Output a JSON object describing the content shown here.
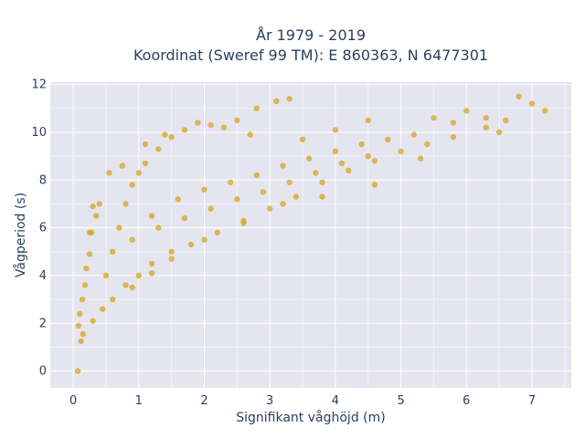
{
  "chart_data": {
    "type": "scatter",
    "title_lines": [
      "År 1979 - 2019",
      "Koordinat (Sweref 99 TM): E 860363, N 6477301"
    ],
    "xlabel": "Signifikant våghöjd (m)",
    "ylabel": "Vågperiod (s)",
    "xlim": [
      -0.35,
      7.6
    ],
    "ylim": [
      -0.7,
      12.1
    ],
    "xticks": [
      0,
      1,
      2,
      3,
      4,
      5,
      6,
      7
    ],
    "yticks": [
      0,
      2,
      4,
      6,
      8,
      10,
      12
    ],
    "grid": true,
    "point_color": "#d4a520",
    "plot_background": "#e5e5f0",
    "series": [
      {
        "points": [
          [
            0.07,
            0.0
          ],
          [
            0.12,
            1.25
          ],
          [
            0.15,
            1.55
          ],
          [
            0.08,
            1.9
          ],
          [
            0.1,
            2.4
          ],
          [
            0.14,
            3.0
          ],
          [
            0.18,
            3.6
          ],
          [
            0.2,
            4.3
          ],
          [
            0.25,
            4.9
          ],
          [
            0.28,
            5.8
          ],
          [
            0.35,
            6.5
          ],
          [
            0.4,
            7.0
          ],
          [
            0.3,
            2.1
          ],
          [
            0.45,
            2.6
          ],
          [
            0.6,
            3.0
          ],
          [
            0.8,
            3.6
          ],
          [
            1.0,
            4.0
          ],
          [
            1.2,
            4.5
          ],
          [
            1.5,
            5.0
          ],
          [
            1.8,
            5.3
          ],
          [
            2.2,
            5.8
          ],
          [
            2.6,
            6.3
          ],
          [
            3.0,
            6.8
          ],
          [
            3.4,
            7.3
          ],
          [
            3.8,
            7.9
          ],
          [
            4.2,
            8.4
          ],
          [
            4.6,
            8.8
          ],
          [
            5.0,
            9.2
          ],
          [
            5.4,
            9.5
          ],
          [
            5.8,
            9.8
          ],
          [
            0.5,
            4.0
          ],
          [
            0.6,
            5.0
          ],
          [
            0.7,
            6.0
          ],
          [
            0.8,
            7.0
          ],
          [
            0.9,
            7.8
          ],
          [
            1.0,
            8.3
          ],
          [
            1.1,
            8.7
          ],
          [
            1.3,
            9.3
          ],
          [
            1.5,
            9.8
          ],
          [
            1.7,
            10.1
          ],
          [
            1.9,
            10.4
          ],
          [
            2.1,
            10.3
          ],
          [
            2.5,
            10.5
          ],
          [
            1.2,
            6.5
          ],
          [
            1.6,
            7.2
          ],
          [
            2.0,
            7.6
          ],
          [
            2.4,
            7.9
          ],
          [
            2.8,
            8.2
          ],
          [
            3.2,
            8.6
          ],
          [
            3.6,
            8.9
          ],
          [
            4.0,
            9.2
          ],
          [
            4.4,
            9.5
          ],
          [
            4.8,
            9.7
          ],
          [
            5.2,
            9.9
          ],
          [
            0.9,
            5.5
          ],
          [
            1.3,
            6.0
          ],
          [
            1.7,
            6.4
          ],
          [
            2.1,
            6.8
          ],
          [
            2.5,
            7.2
          ],
          [
            2.9,
            7.5
          ],
          [
            3.3,
            7.9
          ],
          [
            3.7,
            8.3
          ],
          [
            4.1,
            8.7
          ],
          [
            4.5,
            9.0
          ],
          [
            2.8,
            11.0
          ],
          [
            3.1,
            11.3
          ],
          [
            3.3,
            11.4
          ],
          [
            4.5,
            10.5
          ],
          [
            5.5,
            10.6
          ],
          [
            5.8,
            10.4
          ],
          [
            6.0,
            10.9
          ],
          [
            6.3,
            10.6
          ],
          [
            6.6,
            10.5
          ],
          [
            6.8,
            11.5
          ],
          [
            7.0,
            11.2
          ],
          [
            7.2,
            10.9
          ],
          [
            6.3,
            10.2
          ],
          [
            6.5,
            10.0
          ],
          [
            5.3,
            8.9
          ],
          [
            4.6,
            7.8
          ],
          [
            3.8,
            7.3
          ],
          [
            3.2,
            7.0
          ],
          [
            2.6,
            6.2
          ],
          [
            2.0,
            5.5
          ],
          [
            1.5,
            4.7
          ],
          [
            1.2,
            4.1
          ],
          [
            0.9,
            3.5
          ],
          [
            0.25,
            5.8
          ],
          [
            0.3,
            6.9
          ],
          [
            0.55,
            8.3
          ],
          [
            0.75,
            8.6
          ],
          [
            1.1,
            9.5
          ],
          [
            1.4,
            9.9
          ],
          [
            2.3,
            10.2
          ],
          [
            2.7,
            9.9
          ],
          [
            3.5,
            9.7
          ],
          [
            4.0,
            10.1
          ]
        ]
      }
    ]
  }
}
